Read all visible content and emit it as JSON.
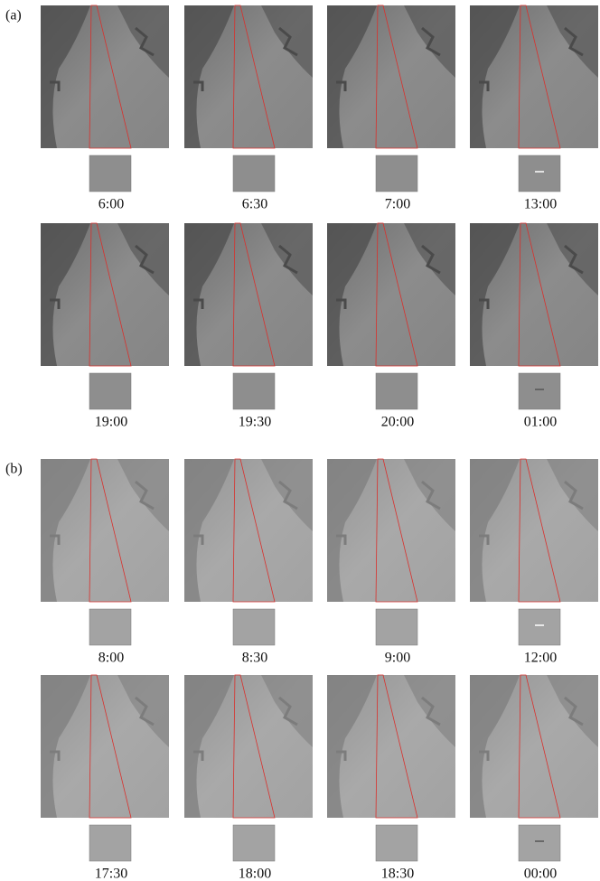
{
  "panels": [
    {
      "label": "(a)",
      "rows": [
        [
          "6:00",
          "6:30",
          "7:00",
          "13:00"
        ],
        [
          "19:00",
          "19:30",
          "20:00",
          "01:00"
        ]
      ]
    },
    {
      "label": "(b)",
      "rows": [
        [
          "8:00",
          "8:30",
          "9:00",
          "12:00"
        ],
        [
          "17:30",
          "18:00",
          "18:30",
          "00:00"
        ]
      ]
    }
  ]
}
